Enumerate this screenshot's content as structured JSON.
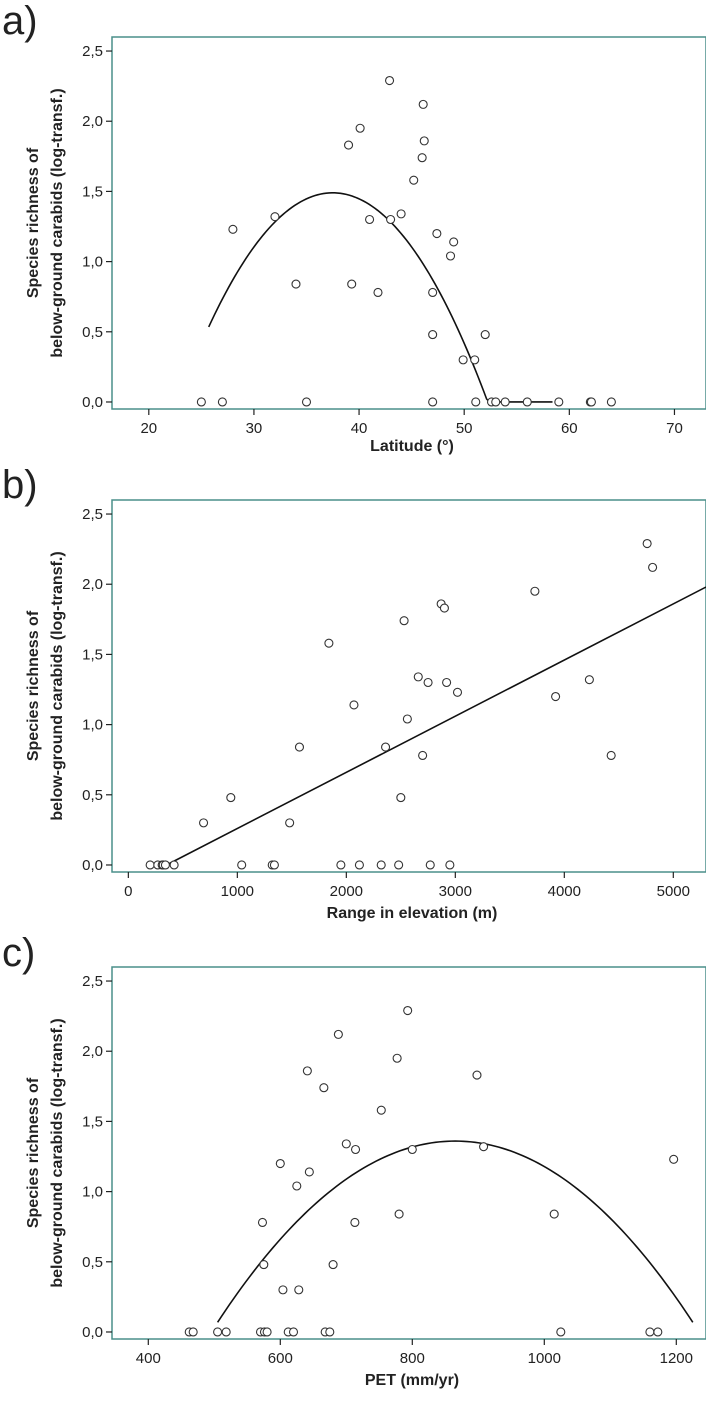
{
  "chart_data": [
    {
      "type": "scatter",
      "panel_label": "a)",
      "xlabel": "Latitude (°)",
      "ylabel_line1": "Species richness of",
      "ylabel_line2": "below-ground carabids (log-transf.)",
      "xlim": [
        16.5,
        73
      ],
      "ylim": [
        -0.05,
        2.6
      ],
      "xticks": [
        20,
        30,
        40,
        50,
        60,
        70
      ],
      "yticks": [
        0,
        0.5,
        1,
        1.5,
        2,
        2.5
      ],
      "ytick_labels": [
        "0,0",
        "0,5",
        "1,0",
        "1,5",
        "2,0",
        "2,5"
      ],
      "points": [
        [
          25,
          0
        ],
        [
          27,
          0
        ],
        [
          28,
          1.23
        ],
        [
          32,
          1.32
        ],
        [
          34,
          0.84
        ],
        [
          35,
          0
        ],
        [
          39,
          1.83
        ],
        [
          39.3,
          0.84
        ],
        [
          40.1,
          1.95
        ],
        [
          41,
          1.3
        ],
        [
          41.8,
          0.78
        ],
        [
          42.9,
          2.29
        ],
        [
          43,
          1.3
        ],
        [
          44,
          1.34
        ],
        [
          45.2,
          1.58
        ],
        [
          46,
          1.74
        ],
        [
          46.2,
          1.86
        ],
        [
          46.1,
          2.12
        ],
        [
          47,
          0.78
        ],
        [
          47,
          0.48
        ],
        [
          47,
          0
        ],
        [
          47.4,
          1.2
        ],
        [
          48.7,
          1.04
        ],
        [
          49,
          1.14
        ],
        [
          49.9,
          0.3
        ],
        [
          51,
          0.3
        ],
        [
          51.1,
          0
        ],
        [
          52,
          0.48
        ],
        [
          52.6,
          0
        ],
        [
          53,
          0
        ],
        [
          53.9,
          0
        ],
        [
          56,
          0
        ],
        [
          59,
          0
        ],
        [
          62,
          0
        ],
        [
          62.1,
          0
        ],
        [
          64,
          0
        ]
      ],
      "fit_type": "quadratic",
      "fit_curve": {
        "x0": 37.5,
        "peak": 1.49,
        "k": 0.00686,
        "x_min": 25.7,
        "x_max": 58.4
      }
    },
    {
      "type": "scatter",
      "panel_label": "b)",
      "xlabel": "Range in elevation (m)",
      "ylabel_line1": "Species richness of",
      "ylabel_line2": "below-ground carabids (log-transf.)",
      "xlim": [
        -150,
        5300
      ],
      "ylim": [
        -0.05,
        2.6
      ],
      "xticks": [
        0,
        1000,
        2000,
        3000,
        4000,
        5000
      ],
      "yticks": [
        0,
        0.5,
        1,
        1.5,
        2,
        2.5
      ],
      "ytick_labels": [
        "0,0",
        "0,5",
        "1,0",
        "1,5",
        "2,0",
        "2,5"
      ],
      "points": [
        [
          200,
          0
        ],
        [
          270,
          0
        ],
        [
          310,
          0
        ],
        [
          320,
          0
        ],
        [
          340,
          0
        ],
        [
          420,
          0
        ],
        [
          690,
          0.3
        ],
        [
          940,
          0.48
        ],
        [
          1040,
          0
        ],
        [
          1320,
          0
        ],
        [
          1340,
          0
        ],
        [
          1480,
          0.3
        ],
        [
          1570,
          0.84
        ],
        [
          1840,
          1.58
        ],
        [
          1950,
          0
        ],
        [
          2070,
          1.14
        ],
        [
          2120,
          0
        ],
        [
          2320,
          0
        ],
        [
          2360,
          0.84
        ],
        [
          2480,
          0
        ],
        [
          2500,
          0.48
        ],
        [
          2530,
          1.74
        ],
        [
          2560,
          1.04
        ],
        [
          2660,
          1.34
        ],
        [
          2700,
          0.78
        ],
        [
          2750,
          1.3
        ],
        [
          2770,
          0
        ],
        [
          2870,
          1.86
        ],
        [
          2900,
          1.83
        ],
        [
          2920,
          1.3
        ],
        [
          2950,
          0
        ],
        [
          3020,
          1.23
        ],
        [
          3730,
          1.95
        ],
        [
          3920,
          1.2
        ],
        [
          4230,
          1.32
        ],
        [
          4430,
          0.78
        ],
        [
          4760,
          2.29
        ],
        [
          4810,
          2.12
        ]
      ],
      "fit_type": "linear",
      "fit_line": {
        "x_start": 350,
        "y_start": 0,
        "x_end": 5300,
        "y_end": 1.98
      }
    },
    {
      "type": "scatter",
      "panel_label": "c)",
      "xlabel": "PET (mm/yr)",
      "ylabel_line1": "Species richness of",
      "ylabel_line2": "below-ground carabids (log-transf.)",
      "xlim": [
        345,
        1245
      ],
      "ylim": [
        -0.05,
        2.6
      ],
      "xticks": [
        400,
        600,
        800,
        1000,
        1200
      ],
      "yticks": [
        0,
        0.5,
        1,
        1.5,
        2,
        2.5
      ],
      "ytick_labels": [
        "0,0",
        "0,5",
        "1,0",
        "1,5",
        "2,0",
        "2,5"
      ],
      "points": [
        [
          462,
          0
        ],
        [
          468,
          0
        ],
        [
          505,
          0
        ],
        [
          518,
          0
        ],
        [
          570,
          0
        ],
        [
          576,
          0
        ],
        [
          580,
          0
        ],
        [
          573,
          0.78
        ],
        [
          575,
          0.48
        ],
        [
          600,
          1.2
        ],
        [
          604,
          0.3
        ],
        [
          612,
          0
        ],
        [
          620,
          0
        ],
        [
          625,
          1.04
        ],
        [
          628,
          0.3
        ],
        [
          641,
          1.86
        ],
        [
          644,
          1.14
        ],
        [
          666,
          1.74
        ],
        [
          668,
          0
        ],
        [
          675,
          0
        ],
        [
          680,
          0.48
        ],
        [
          688,
          2.12
        ],
        [
          700,
          1.34
        ],
        [
          713,
          0.78
        ],
        [
          714,
          1.3
        ],
        [
          753,
          1.58
        ],
        [
          777,
          1.95
        ],
        [
          780,
          0.84
        ],
        [
          793,
          2.29
        ],
        [
          800,
          1.3
        ],
        [
          898,
          1.83
        ],
        [
          908,
          1.32
        ],
        [
          1015,
          0.84
        ],
        [
          1025,
          0
        ],
        [
          1160,
          0
        ],
        [
          1172,
          0
        ],
        [
          1196,
          1.23
        ]
      ],
      "fit_type": "quadratic",
      "fit_curve": {
        "x0": 865,
        "peak": 1.36,
        "k": 9.96e-06,
        "x_min": 505,
        "x_max": 1225
      }
    }
  ]
}
